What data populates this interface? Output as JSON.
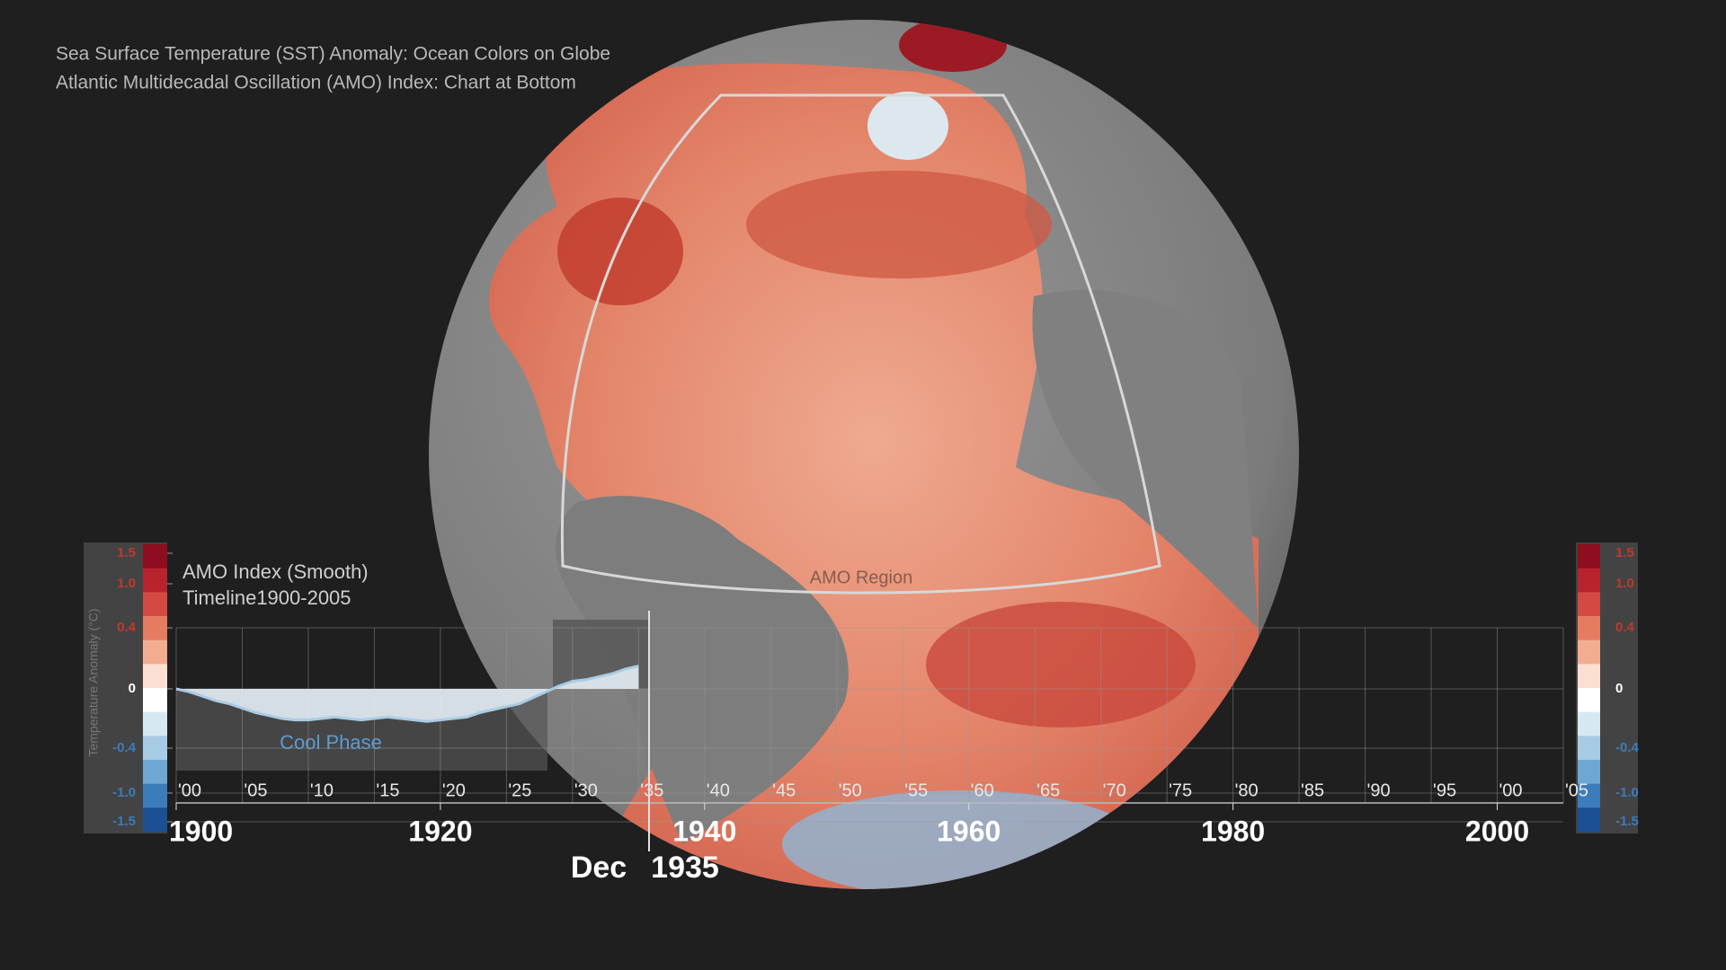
{
  "header": {
    "lines": [
      "Sea Surface Temperature (SST) Anomaly: Ocean Colors on Globe",
      "Atlantic Multidecadal Oscillation (AMO) Index: Chart at Bottom"
    ]
  },
  "globe": {
    "region_label": "AMO Region"
  },
  "current_date": {
    "month": "Dec",
    "year": "1935"
  },
  "chart_data": {
    "type": "area",
    "title": "AMO Index (Smooth)",
    "subtitle": "Timeline1900-2005",
    "y_label": "Temperature Anomaly (°C)",
    "annotations": [
      "Cool Phase"
    ],
    "color": "#e3eef5",
    "line_color": "#a9cce3",
    "x": [
      1900,
      1901,
      1902,
      1903,
      1904,
      1905,
      1906,
      1907,
      1908,
      1909,
      1910,
      1911,
      1912,
      1913,
      1914,
      1915,
      1916,
      1917,
      1918,
      1919,
      1920,
      1921,
      1922,
      1923,
      1924,
      1925,
      1926,
      1927,
      1928,
      1929,
      1930,
      1931,
      1932,
      1933,
      1934,
      1935
    ],
    "values": [
      0,
      -0.02,
      -0.05,
      -0.08,
      -0.1,
      -0.13,
      -0.16,
      -0.18,
      -0.2,
      -0.21,
      -0.21,
      -0.2,
      -0.19,
      -0.2,
      -0.21,
      -0.2,
      -0.19,
      -0.2,
      -0.21,
      -0.22,
      -0.21,
      -0.2,
      -0.19,
      -0.16,
      -0.14,
      -0.12,
      -0.1,
      -0.06,
      -0.02,
      0.02,
      0.05,
      0.06,
      0.08,
      0.1,
      0.13,
      0.15
    ],
    "xlim": [
      1900,
      2005
    ],
    "xticks": [
      {
        "value": 1900,
        "label": "'00"
      },
      {
        "value": 1905,
        "label": "'05"
      },
      {
        "value": 1910,
        "label": "'10"
      },
      {
        "value": 1915,
        "label": "'15"
      },
      {
        "value": 1920,
        "label": "'20"
      },
      {
        "value": 1925,
        "label": "'25"
      },
      {
        "value": 1930,
        "label": "'30"
      },
      {
        "value": 1935,
        "label": "'35"
      },
      {
        "value": 1940,
        "label": "'40"
      },
      {
        "value": 1945,
        "label": "'45"
      },
      {
        "value": 1950,
        "label": "'50"
      },
      {
        "value": 1955,
        "label": "'55"
      },
      {
        "value": 1960,
        "label": "'60"
      },
      {
        "value": 1965,
        "label": "'65"
      },
      {
        "value": 1970,
        "label": "'70"
      },
      {
        "value": 1975,
        "label": "'75"
      },
      {
        "value": 1980,
        "label": "'80"
      },
      {
        "value": 1985,
        "label": "'85"
      },
      {
        "value": 1990,
        "label": "'90"
      },
      {
        "value": 1995,
        "label": "'95"
      },
      {
        "value": 2000,
        "label": "'00"
      },
      {
        "value": 2005,
        "label": "'05"
      }
    ],
    "major_xticks": [
      1900,
      1920,
      1940,
      1960,
      1980,
      2000
    ],
    "yticks": [
      1.5,
      {
        "value": 1.0,
        "label": "1.0"
      },
      0.4,
      0,
      -0.4,
      {
        "value": -1.0,
        "label": "-1.0"
      },
      -1.5
    ],
    "colorbar_colors": [
      "#8e0d1f",
      "#b8232e",
      "#d44a43",
      "#e57c62",
      "#f2ad90",
      "#fbe0d2",
      "#ffffff",
      "#d7e8f3",
      "#a7cbe4",
      "#6fa7d2",
      "#3b7cba",
      "#1c4f93"
    ],
    "grid": true
  }
}
